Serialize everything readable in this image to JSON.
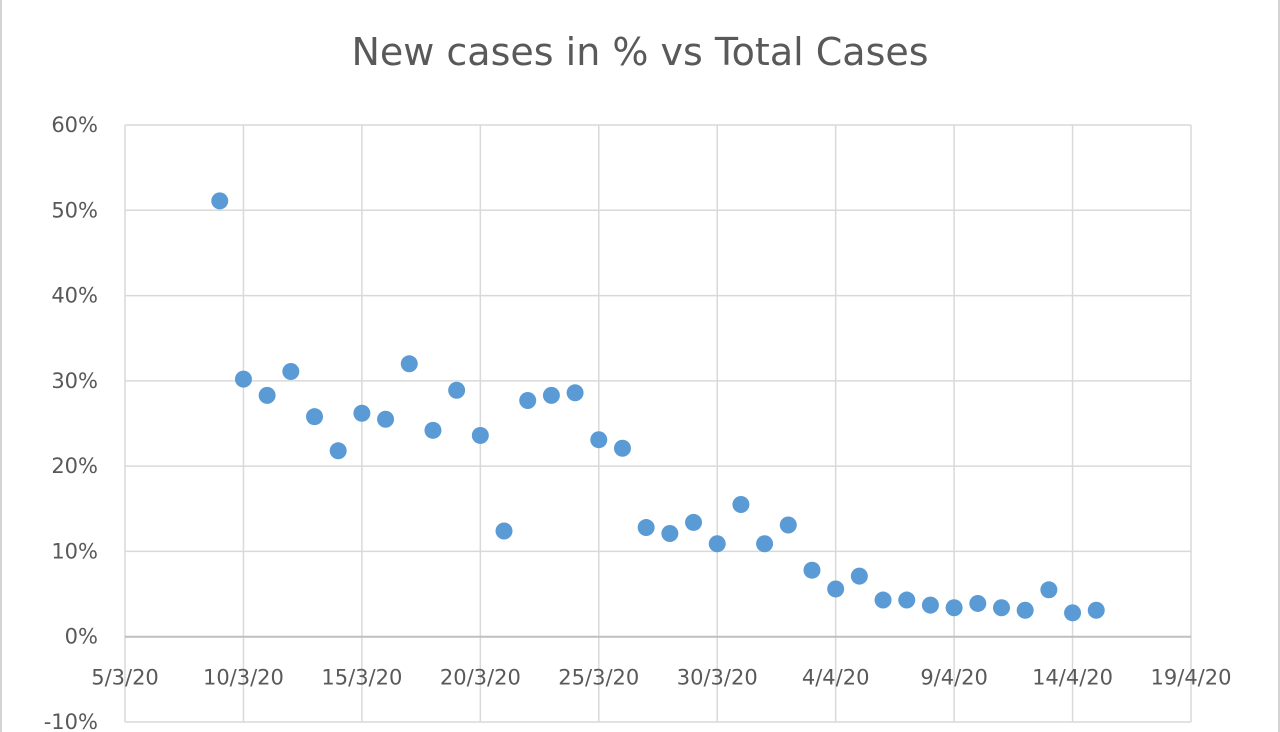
{
  "chart_data": {
    "type": "scatter",
    "title": "New cases in % vs Total Cases",
    "xlabel": "",
    "ylabel": "",
    "x_axis_type": "date",
    "x_ticks": [
      "5/3/20",
      "10/3/20",
      "15/3/20",
      "20/3/20",
      "25/3/20",
      "30/3/20",
      "4/4/20",
      "9/4/20",
      "14/4/20",
      "19/4/20"
    ],
    "y_ticks": [
      "-10%",
      "0%",
      "10%",
      "20%",
      "30%",
      "40%",
      "50%",
      "60%"
    ],
    "xlim": [
      "2020-03-05",
      "2020-04-19"
    ],
    "ylim": [
      -10,
      60
    ],
    "y_unit": "%",
    "grid": true,
    "legend": "none",
    "marker_color": "#5b9bd5",
    "series": [
      {
        "points": [
          {
            "x": "2020-03-09",
            "y": 51.1
          },
          {
            "x": "2020-03-10",
            "y": 30.2
          },
          {
            "x": "2020-03-11",
            "y": 28.3
          },
          {
            "x": "2020-03-12",
            "y": 31.1
          },
          {
            "x": "2020-03-13",
            "y": 25.8
          },
          {
            "x": "2020-03-14",
            "y": 21.8
          },
          {
            "x": "2020-03-15",
            "y": 26.2
          },
          {
            "x": "2020-03-16",
            "y": 25.5
          },
          {
            "x": "2020-03-17",
            "y": 32.0
          },
          {
            "x": "2020-03-18",
            "y": 24.2
          },
          {
            "x": "2020-03-19",
            "y": 28.9
          },
          {
            "x": "2020-03-20",
            "y": 23.6
          },
          {
            "x": "2020-03-21",
            "y": 12.4
          },
          {
            "x": "2020-03-22",
            "y": 27.7
          },
          {
            "x": "2020-03-23",
            "y": 28.3
          },
          {
            "x": "2020-03-24",
            "y": 28.6
          },
          {
            "x": "2020-03-25",
            "y": 23.1
          },
          {
            "x": "2020-03-26",
            "y": 22.1
          },
          {
            "x": "2020-03-27",
            "y": 12.8
          },
          {
            "x": "2020-03-28",
            "y": 12.1
          },
          {
            "x": "2020-03-29",
            "y": 13.4
          },
          {
            "x": "2020-03-30",
            "y": 10.9
          },
          {
            "x": "2020-03-31",
            "y": 15.5
          },
          {
            "x": "2020-04-01",
            "y": 10.9
          },
          {
            "x": "2020-04-02",
            "y": 13.1
          },
          {
            "x": "2020-04-03",
            "y": 7.8
          },
          {
            "x": "2020-04-04",
            "y": 5.6
          },
          {
            "x": "2020-04-05",
            "y": 7.1
          },
          {
            "x": "2020-04-06",
            "y": 4.3
          },
          {
            "x": "2020-04-07",
            "y": 4.3
          },
          {
            "x": "2020-04-08",
            "y": 3.7
          },
          {
            "x": "2020-04-09",
            "y": 3.4
          },
          {
            "x": "2020-04-10",
            "y": 3.9
          },
          {
            "x": "2020-04-11",
            "y": 3.4
          },
          {
            "x": "2020-04-12",
            "y": 3.1
          },
          {
            "x": "2020-04-13",
            "y": 5.5
          },
          {
            "x": "2020-04-14",
            "y": 2.8
          },
          {
            "x": "2020-04-15",
            "y": 3.1
          }
        ]
      }
    ]
  }
}
